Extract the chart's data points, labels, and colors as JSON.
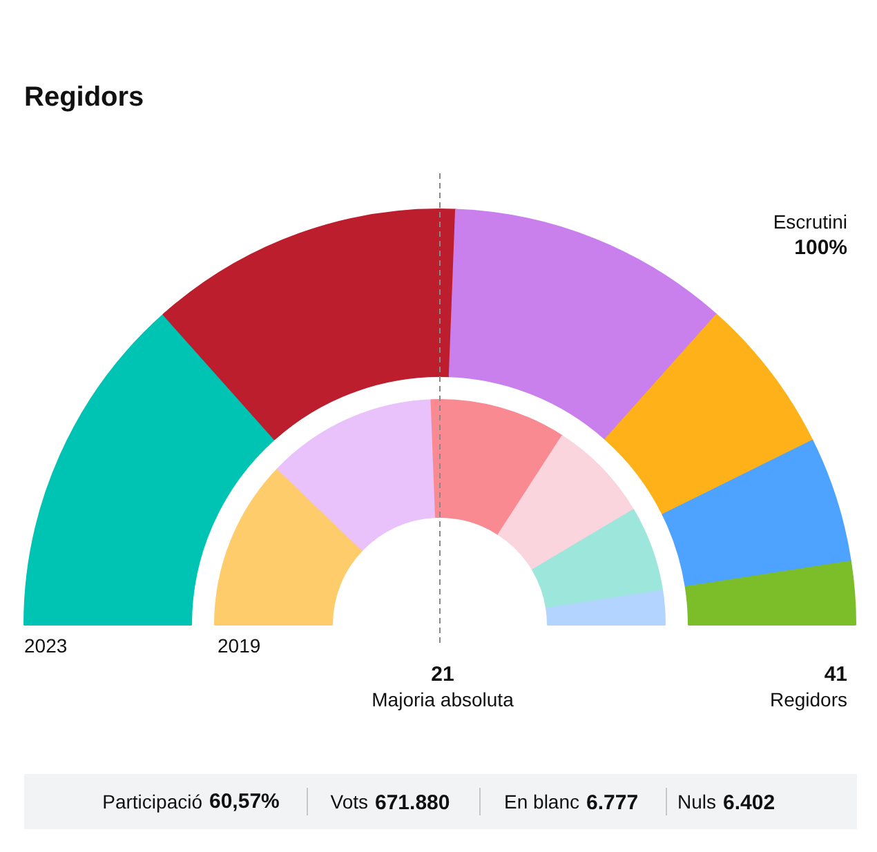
{
  "chart_data": {
    "type": "donut",
    "title": "Regidors",
    "categories": [
      null,
      null,
      null,
      null,
      null,
      null
    ],
    "series": [
      {
        "name": "2023",
        "values": [
          26.83,
          24.39,
          21.95,
          12.19,
          9.76,
          4.88
        ],
        "colors": [
          "#00c4b3",
          "#bc1e2d",
          "#c97fec",
          "#ffb11a",
          "#4da3ff",
          "#7cbd2a"
        ]
      },
      {
        "name": "2019",
        "values": [
          24.39,
          24.39,
          19.51,
          14.63,
          12.2,
          4.88
        ],
        "colors": [
          "#ffcc6b",
          "#e9c1fb",
          "#f98a91",
          "#fbd5dd",
          "#9de6dc",
          "#b3d4ff"
        ]
      }
    ],
    "annotations": [
      "Escrutini",
      "100%",
      "21",
      "Majoria absoluta",
      "41",
      "Regidors",
      "Participació 60,57%",
      "Vots 671.880",
      "En blanc 6.777",
      "Nuls 6.402"
    ]
  }
}
